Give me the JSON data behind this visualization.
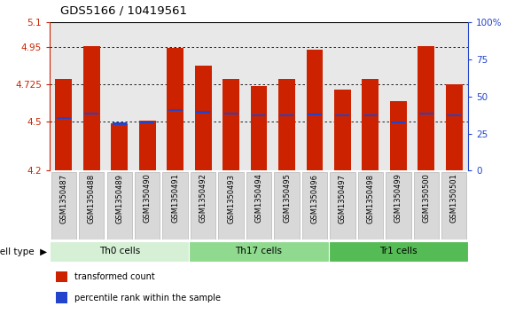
{
  "title": "GDS5166 / 10419561",
  "samples": [
    "GSM1350487",
    "GSM1350488",
    "GSM1350489",
    "GSM1350490",
    "GSM1350491",
    "GSM1350492",
    "GSM1350493",
    "GSM1350494",
    "GSM1350495",
    "GSM1350496",
    "GSM1350497",
    "GSM1350498",
    "GSM1350499",
    "GSM1350500",
    "GSM1350501"
  ],
  "bar_tops": [
    4.755,
    4.955,
    4.49,
    4.505,
    4.945,
    4.84,
    4.755,
    4.715,
    4.755,
    4.935,
    4.695,
    4.755,
    4.62,
    4.955,
    4.725
  ],
  "blue_markers": [
    4.52,
    4.545,
    4.485,
    4.495,
    4.57,
    4.555,
    4.545,
    4.535,
    4.535,
    4.54,
    4.535,
    4.535,
    4.495,
    4.545,
    4.535
  ],
  "bar_bottom": 4.2,
  "ylim_left": [
    4.2,
    5.1
  ],
  "yticks_left": [
    4.2,
    4.5,
    4.725,
    4.95,
    5.1
  ],
  "ytick_labels_left": [
    "4.2",
    "4.5",
    "4.725",
    "4.95",
    "5.1"
  ],
  "yticks_right": [
    0,
    25,
    50,
    75,
    100
  ],
  "ytick_labels_right": [
    "0",
    "25",
    "50",
    "75",
    "100%"
  ],
  "cell_groups": [
    {
      "label": "Th0 cells",
      "start": 0,
      "end": 5,
      "color": "#d5f0d5"
    },
    {
      "label": "Th17 cells",
      "start": 5,
      "end": 10,
      "color": "#8fda8f"
    },
    {
      "label": "Tr1 cells",
      "start": 10,
      "end": 15,
      "color": "#55bb55"
    }
  ],
  "bar_color": "#cc2200",
  "blue_color": "#2244cc",
  "bg_plot": "#e8e8e8",
  "bg_xlabel": "#cccccc",
  "left_axis_color": "#cc2200",
  "right_axis_color": "#2244cc",
  "legend_items": [
    {
      "color": "#cc2200",
      "label": "transformed count"
    },
    {
      "color": "#2244cc",
      "label": "percentile rank within the sample"
    }
  ]
}
